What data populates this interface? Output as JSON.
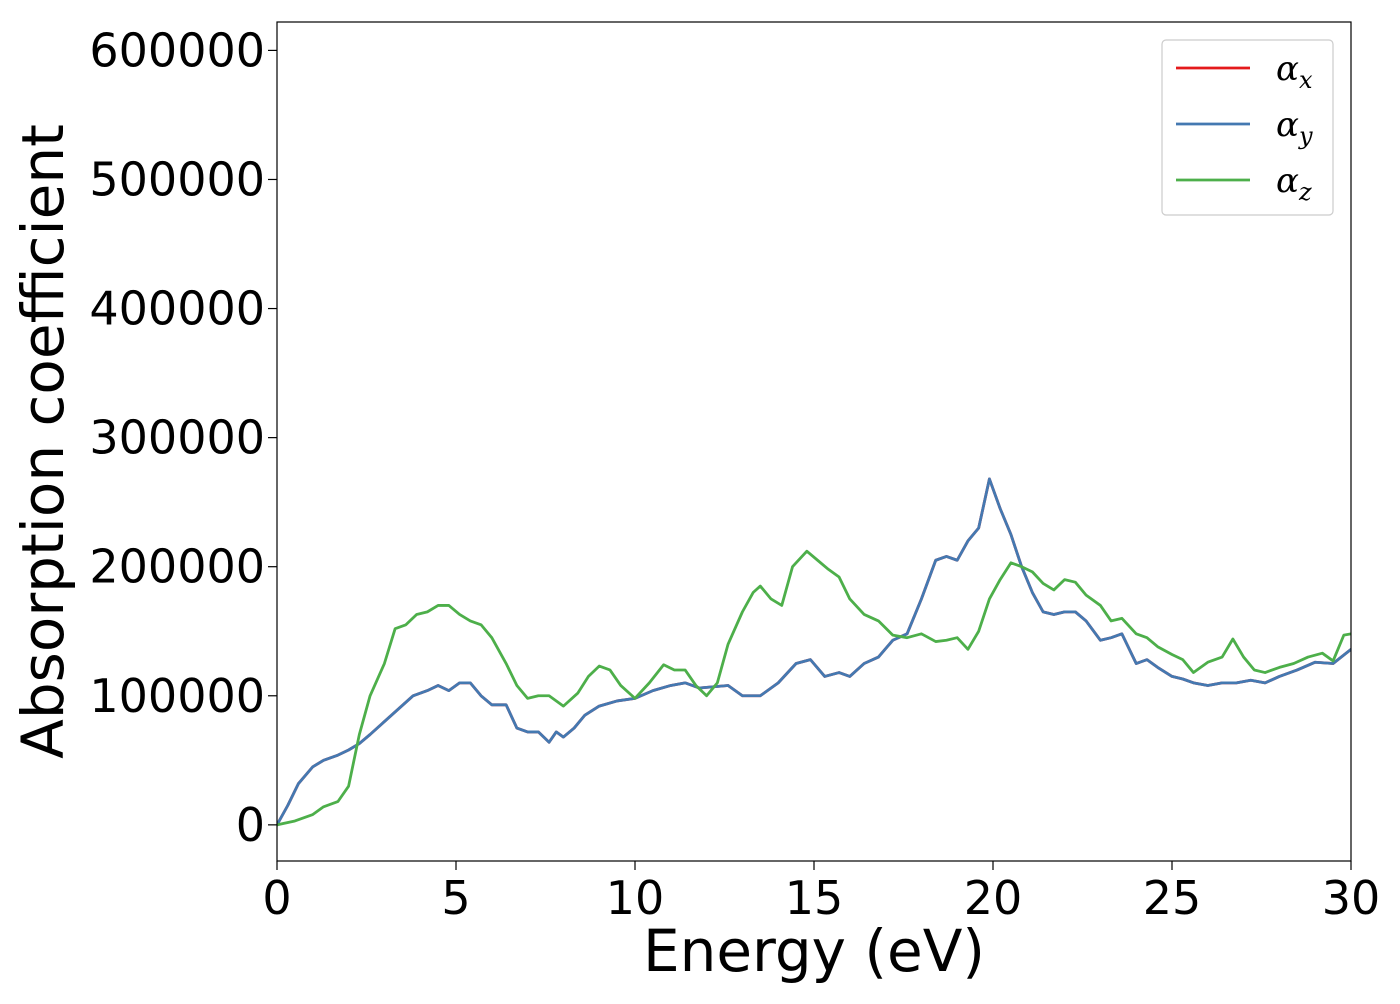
{
  "chart_data": {
    "type": "line",
    "title": "",
    "xlabel": "Energy (eV)",
    "ylabel": "Absorption coefficient",
    "xlim": [
      0,
      30
    ],
    "ylim": [
      -28000,
      622000
    ],
    "xticks": [
      0,
      5,
      10,
      15,
      20,
      25,
      30
    ],
    "yticks": [
      0,
      100000,
      200000,
      300000,
      400000,
      500000,
      600000
    ],
    "grid": false,
    "legend_position": "top-right",
    "series": [
      {
        "name": "αx",
        "label_base": "α",
        "label_sub": "x",
        "color": "#e41a1c",
        "x": [
          0,
          0.3,
          0.6,
          1.0,
          1.3,
          1.7,
          2.0,
          2.3,
          2.6,
          3.0,
          3.4,
          3.8,
          4.2,
          4.5,
          4.8,
          5.1,
          5.4,
          5.7,
          6.0,
          6.4,
          6.7,
          7.0,
          7.3,
          7.6,
          7.8,
          8.0,
          8.3,
          8.6,
          9.0,
          9.5,
          10.0,
          10.5,
          11.0,
          11.4,
          11.8,
          12.2,
          12.6,
          13.0,
          13.5,
          14.0,
          14.5,
          14.9,
          15.3,
          15.7,
          16.0,
          16.4,
          16.8,
          17.2,
          17.6,
          18.0,
          18.4,
          18.7,
          19.0,
          19.3,
          19.6,
          19.9,
          20.2,
          20.5,
          20.8,
          21.1,
          21.4,
          21.7,
          22.0,
          22.3,
          22.6,
          23.0,
          23.3,
          23.6,
          24.0,
          24.3,
          24.6,
          25.0,
          25.3,
          25.6,
          26.0,
          26.4,
          26.8,
          27.2,
          27.6,
          28.0,
          28.5,
          29.0,
          29.5,
          30.0
        ],
        "y": [
          0,
          15000,
          32000,
          45000,
          50000,
          54000,
          58000,
          63000,
          70000,
          80000,
          90000,
          100000,
          104000,
          108000,
          104000,
          110000,
          110000,
          100000,
          93000,
          93000,
          75000,
          72000,
          72000,
          64000,
          72000,
          68000,
          75000,
          85000,
          92000,
          96000,
          98000,
          104000,
          108000,
          110000,
          106000,
          107000,
          108000,
          100000,
          100000,
          110000,
          125000,
          128000,
          115000,
          118000,
          115000,
          125000,
          130000,
          143000,
          148000,
          175000,
          205000,
          208000,
          205000,
          220000,
          230000,
          268000,
          245000,
          225000,
          200000,
          180000,
          165000,
          163000,
          165000,
          165000,
          158000,
          143000,
          145000,
          148000,
          125000,
          128000,
          122000,
          115000,
          113000,
          110000,
          108000,
          110000,
          110000,
          112000,
          110000,
          115000,
          120000,
          126000,
          125000,
          136000
        ]
      },
      {
        "name": "αy",
        "label_base": "α",
        "label_sub": "y",
        "color": "#4479b1",
        "x": [
          0,
          0.3,
          0.6,
          1.0,
          1.3,
          1.7,
          2.0,
          2.3,
          2.6,
          3.0,
          3.4,
          3.8,
          4.2,
          4.5,
          4.8,
          5.1,
          5.4,
          5.7,
          6.0,
          6.4,
          6.7,
          7.0,
          7.3,
          7.6,
          7.8,
          8.0,
          8.3,
          8.6,
          9.0,
          9.5,
          10.0,
          10.5,
          11.0,
          11.4,
          11.8,
          12.2,
          12.6,
          13.0,
          13.5,
          14.0,
          14.5,
          14.9,
          15.3,
          15.7,
          16.0,
          16.4,
          16.8,
          17.2,
          17.6,
          18.0,
          18.4,
          18.7,
          19.0,
          19.3,
          19.6,
          19.9,
          20.2,
          20.5,
          20.8,
          21.1,
          21.4,
          21.7,
          22.0,
          22.3,
          22.6,
          23.0,
          23.3,
          23.6,
          24.0,
          24.3,
          24.6,
          25.0,
          25.3,
          25.6,
          26.0,
          26.4,
          26.8,
          27.2,
          27.6,
          28.0,
          28.5,
          29.0,
          29.5,
          30.0
        ],
        "y": [
          0,
          15000,
          32000,
          45000,
          50000,
          54000,
          58000,
          63000,
          70000,
          80000,
          90000,
          100000,
          104000,
          108000,
          104000,
          110000,
          110000,
          100000,
          93000,
          93000,
          75000,
          72000,
          72000,
          64000,
          72000,
          68000,
          75000,
          85000,
          92000,
          96000,
          98000,
          104000,
          108000,
          110000,
          106000,
          107000,
          108000,
          100000,
          100000,
          110000,
          125000,
          128000,
          115000,
          118000,
          115000,
          125000,
          130000,
          143000,
          148000,
          175000,
          205000,
          208000,
          205000,
          220000,
          230000,
          268000,
          245000,
          225000,
          200000,
          180000,
          165000,
          163000,
          165000,
          165000,
          158000,
          143000,
          145000,
          148000,
          125000,
          128000,
          122000,
          115000,
          113000,
          110000,
          108000,
          110000,
          110000,
          112000,
          110000,
          115000,
          120000,
          126000,
          125000,
          136000
        ]
      },
      {
        "name": "αz",
        "label_base": "α",
        "label_sub": "z",
        "color": "#4daf4a",
        "x": [
          0,
          0.5,
          1.0,
          1.3,
          1.7,
          2.0,
          2.3,
          2.6,
          3.0,
          3.3,
          3.6,
          3.9,
          4.2,
          4.5,
          4.8,
          5.1,
          5.4,
          5.7,
          6.0,
          6.4,
          6.7,
          7.0,
          7.3,
          7.6,
          8.0,
          8.4,
          8.7,
          9.0,
          9.3,
          9.6,
          10.0,
          10.4,
          10.8,
          11.1,
          11.4,
          11.7,
          12.0,
          12.3,
          12.6,
          13.0,
          13.3,
          13.5,
          13.8,
          14.1,
          14.4,
          14.8,
          15.1,
          15.4,
          15.7,
          16.0,
          16.4,
          16.8,
          17.2,
          17.6,
          18.0,
          18.4,
          18.7,
          19.0,
          19.3,
          19.6,
          19.9,
          20.2,
          20.5,
          20.8,
          21.1,
          21.4,
          21.7,
          22.0,
          22.3,
          22.6,
          23.0,
          23.3,
          23.6,
          24.0,
          24.3,
          24.6,
          25.0,
          25.3,
          25.6,
          26.0,
          26.4,
          26.7,
          27.0,
          27.3,
          27.6,
          28.0,
          28.4,
          28.8,
          29.2,
          29.5,
          29.8,
          30.0
        ],
        "y": [
          0,
          3000,
          8000,
          14000,
          18000,
          30000,
          70000,
          100000,
          125000,
          152000,
          155000,
          163000,
          165000,
          170000,
          170000,
          163000,
          158000,
          155000,
          145000,
          125000,
          108000,
          98000,
          100000,
          100000,
          92000,
          102000,
          115000,
          123000,
          120000,
          108000,
          98000,
          110000,
          124000,
          120000,
          120000,
          108000,
          100000,
          110000,
          140000,
          165000,
          180000,
          185000,
          175000,
          170000,
          200000,
          212000,
          205000,
          198000,
          192000,
          175000,
          163000,
          158000,
          147000,
          145000,
          148000,
          142000,
          143000,
          145000,
          136000,
          150000,
          175000,
          190000,
          203000,
          200000,
          196000,
          187000,
          182000,
          190000,
          188000,
          178000,
          170000,
          158000,
          160000,
          148000,
          145000,
          138000,
          132000,
          128000,
          118000,
          126000,
          130000,
          144000,
          130000,
          120000,
          118000,
          122000,
          125000,
          130000,
          133000,
          127000,
          147000,
          148000
        ]
      }
    ]
  }
}
